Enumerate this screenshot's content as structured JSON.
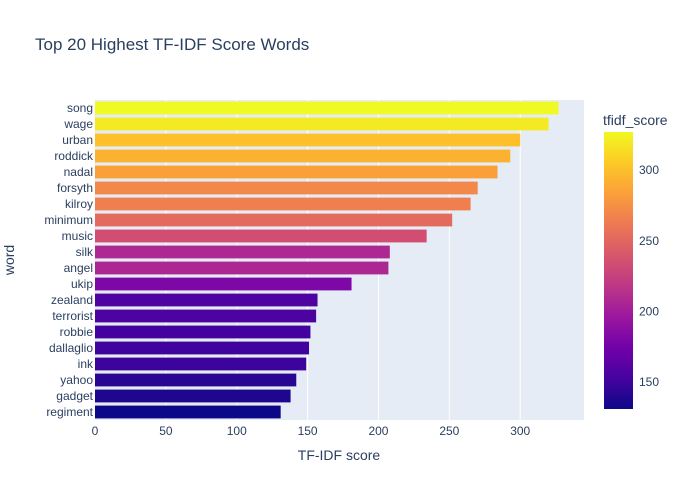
{
  "chart_data": {
    "type": "bar",
    "orientation": "horizontal",
    "title": "Top 20 Highest TF-IDF Score Words",
    "xlabel": "TF-IDF score",
    "ylabel": "word",
    "xlim": [
      0,
      345
    ],
    "x_ticks": [
      0,
      50,
      100,
      150,
      200,
      250,
      300
    ],
    "grid": true,
    "categories": [
      "song",
      "wage",
      "urban",
      "roddick",
      "nadal",
      "forsyth",
      "kilroy",
      "minimum",
      "music",
      "silk",
      "angel",
      "ukip",
      "zealand",
      "terrorist",
      "robbie",
      "dallaglio",
      "ink",
      "yahoo",
      "gadget",
      "regiment"
    ],
    "values": [
      327,
      320,
      300,
      293,
      284,
      270,
      265,
      252,
      234,
      208,
      207,
      181,
      157,
      156,
      152,
      151,
      149,
      142,
      138,
      131
    ],
    "colorscale": "plasma",
    "colorbar": {
      "title": "tfidf_score",
      "range": [
        131,
        327
      ],
      "ticks": [
        150,
        200,
        250,
        300
      ]
    },
    "colors": {
      "plot_bg": "#e5ecf6",
      "text": "#2a3f5f"
    }
  }
}
